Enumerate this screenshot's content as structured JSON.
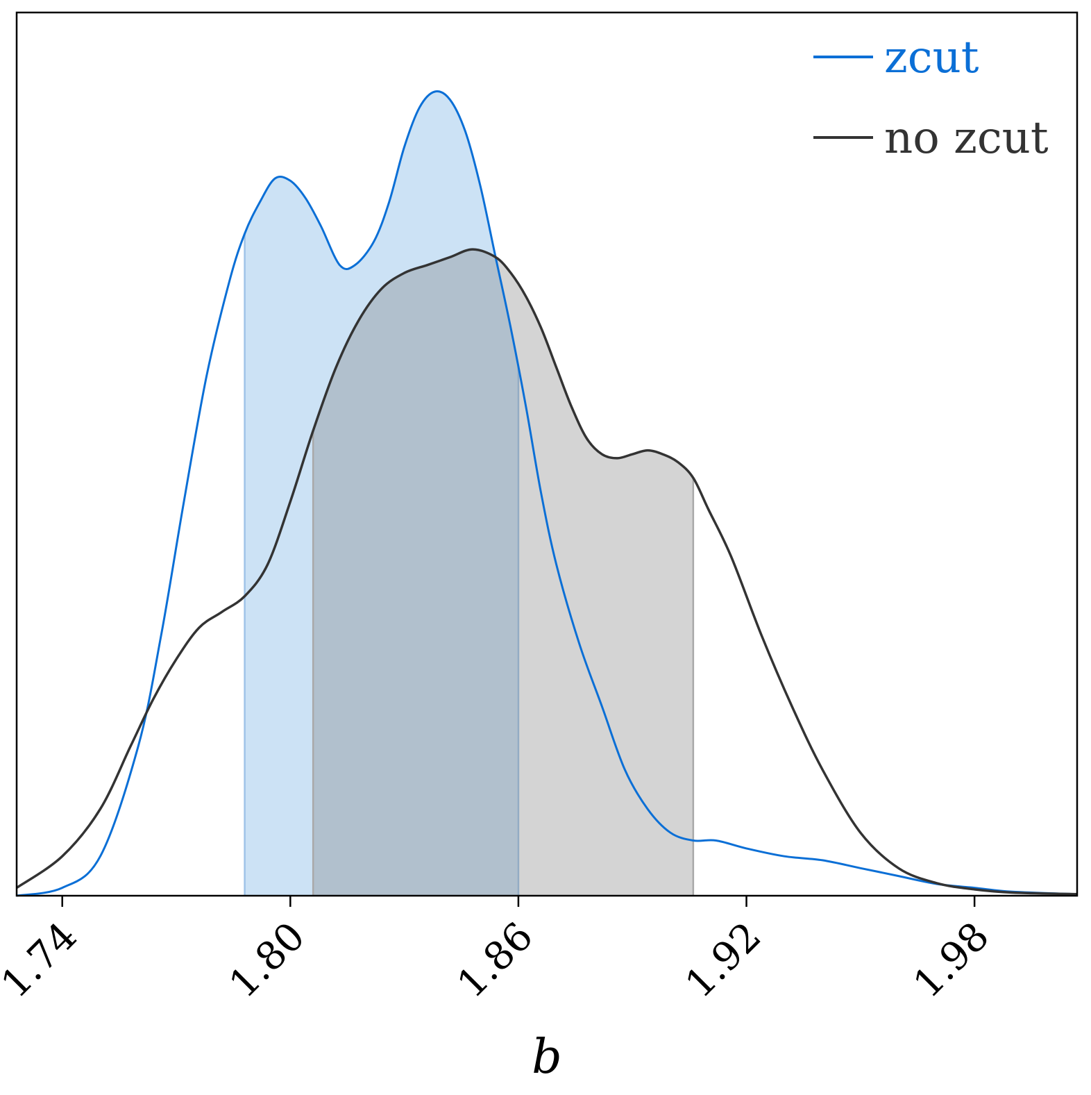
{
  "chart_data": {
    "type": "line",
    "title": "",
    "xlabel": "b",
    "ylabel": "",
    "xlim": [
      1.728,
      2.007
    ],
    "ylim": [
      0,
      1.0
    ],
    "xticks": [
      "1.74",
      "1.80",
      "1.86",
      "1.92",
      "1.98"
    ],
    "xtick_values": [
      1.74,
      1.8,
      1.86,
      1.92,
      1.98
    ],
    "grid": false,
    "legend_position": "top-right",
    "series": [
      {
        "name": "zcut",
        "color": "#0b6fd6",
        "fill_color": "#cce2f5",
        "interval": [
          1.788,
          1.86
        ],
        "x": [
          1.728,
          1.74,
          1.75,
          1.76,
          1.766,
          1.772,
          1.778,
          1.784,
          1.788,
          1.792,
          1.796,
          1.8,
          1.804,
          1.808,
          1.813,
          1.817,
          1.822,
          1.826,
          1.83,
          1.834,
          1.838,
          1.842,
          1.846,
          1.85,
          1.854,
          1.858,
          1.862,
          1.866,
          1.87,
          1.876,
          1.882,
          1.888,
          1.894,
          1.9,
          1.906,
          1.912,
          1.92,
          1.93,
          1.94,
          1.95,
          1.96,
          1.97,
          1.98,
          1.99,
          2.007
        ],
        "y": [
          0.0,
          0.01,
          0.05,
          0.19,
          0.33,
          0.5,
          0.66,
          0.78,
          0.84,
          0.88,
          0.91,
          0.907,
          0.885,
          0.85,
          0.8,
          0.8,
          0.83,
          0.88,
          0.95,
          1.0,
          1.02,
          1.01,
          0.97,
          0.9,
          0.81,
          0.72,
          0.62,
          0.51,
          0.42,
          0.32,
          0.24,
          0.16,
          0.11,
          0.08,
          0.07,
          0.07,
          0.06,
          0.05,
          0.045,
          0.035,
          0.025,
          0.015,
          0.01,
          0.005,
          0.002
        ]
      },
      {
        "name": "no zcut",
        "color": "#333333",
        "fill_color": "#d4d4d4",
        "interval": [
          1.806,
          1.906
        ],
        "x": [
          1.728,
          1.74,
          1.75,
          1.758,
          1.764,
          1.77,
          1.776,
          1.782,
          1.788,
          1.794,
          1.8,
          1.806,
          1.812,
          1.818,
          1.824,
          1.83,
          1.836,
          1.842,
          1.848,
          1.854,
          1.858,
          1.862,
          1.866,
          1.87,
          1.874,
          1.878,
          1.882,
          1.886,
          1.89,
          1.894,
          1.898,
          1.902,
          1.906,
          1.91,
          1.916,
          1.924,
          1.932,
          1.94,
          1.95,
          1.96,
          1.97,
          1.98,
          1.99,
          2.007
        ],
        "y": [
          0.01,
          0.05,
          0.11,
          0.19,
          0.25,
          0.3,
          0.34,
          0.36,
          0.38,
          0.42,
          0.5,
          0.59,
          0.67,
          0.73,
          0.77,
          0.79,
          0.8,
          0.81,
          0.82,
          0.81,
          0.79,
          0.76,
          0.72,
          0.67,
          0.62,
          0.58,
          0.56,
          0.555,
          0.56,
          0.565,
          0.56,
          0.55,
          0.53,
          0.49,
          0.43,
          0.33,
          0.24,
          0.16,
          0.08,
          0.035,
          0.016,
          0.008,
          0.004,
          0.002
        ]
      }
    ]
  }
}
